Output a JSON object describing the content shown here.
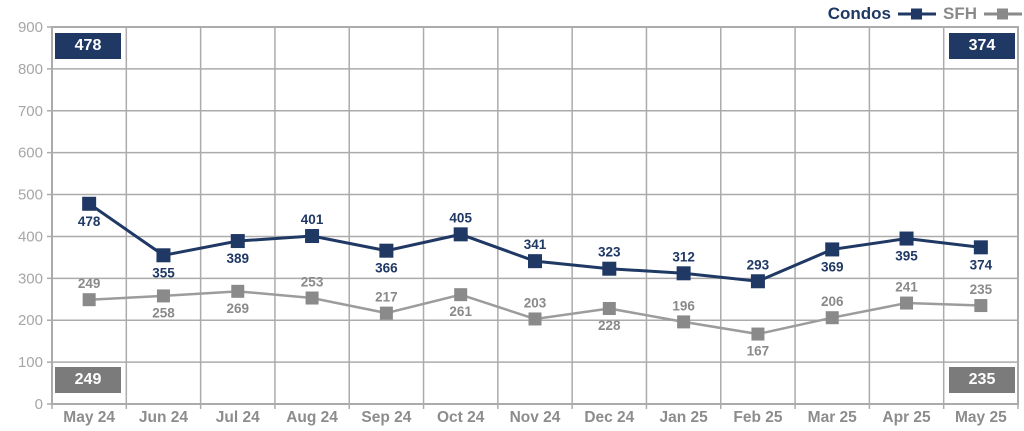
{
  "legend": {
    "items": [
      {
        "label": "Condos",
        "color": "#1F3864"
      },
      {
        "label": "SFH",
        "color": "#8A8A8A"
      }
    ]
  },
  "chart_data": {
    "type": "line",
    "title": "",
    "xlabel": "",
    "ylabel": "",
    "categories": [
      "May 24",
      "Jun 24",
      "Jul 24",
      "Aug 24",
      "Sep 24",
      "Oct 24",
      "Nov 24",
      "Dec 24",
      "Jan 25",
      "Feb 25",
      "Mar 25",
      "Apr 25",
      "May 25"
    ],
    "series": [
      {
        "name": "Condos",
        "color": "#1F3864",
        "line_color": "#1F3864",
        "values": [
          478,
          355,
          389,
          401,
          366,
          405,
          341,
          323,
          312,
          293,
          369,
          395,
          374
        ],
        "label_positions": [
          "below",
          "below",
          "below",
          "above",
          "below",
          "above",
          "above",
          "above",
          "above",
          "above",
          "below",
          "below",
          "below"
        ]
      },
      {
        "name": "SFH",
        "color": "#8A8A8A",
        "line_color": "#9C9C9C",
        "values": [
          249,
          258,
          269,
          253,
          217,
          261,
          203,
          228,
          196,
          167,
          206,
          241,
          235
        ],
        "label_positions": [
          "above",
          "below",
          "below",
          "above",
          "above",
          "below",
          "above",
          "below",
          "above",
          "below",
          "above",
          "above",
          "above"
        ]
      }
    ],
    "ylim": [
      0,
      900
    ],
    "y_ticks": [
      0,
      100,
      200,
      300,
      400,
      500,
      600,
      700,
      800,
      900
    ],
    "grid": true,
    "legend_position": "top-right",
    "corner_badges": {
      "top_left": {
        "value": "478",
        "series": "Condos",
        "color": "#1F3864"
      },
      "top_right": {
        "value": "374",
        "series": "Condos",
        "color": "#1F3864"
      },
      "bottom_left": {
        "value": "249",
        "series": "SFH",
        "color": "#7B7B7B"
      },
      "bottom_right": {
        "value": "235",
        "series": "SFH",
        "color": "#7B7B7B"
      }
    },
    "colors": {
      "grid": "#ABABAB",
      "y_axis_text": "#A6A6A6",
      "x_axis_text": "#8C8C8C"
    }
  }
}
